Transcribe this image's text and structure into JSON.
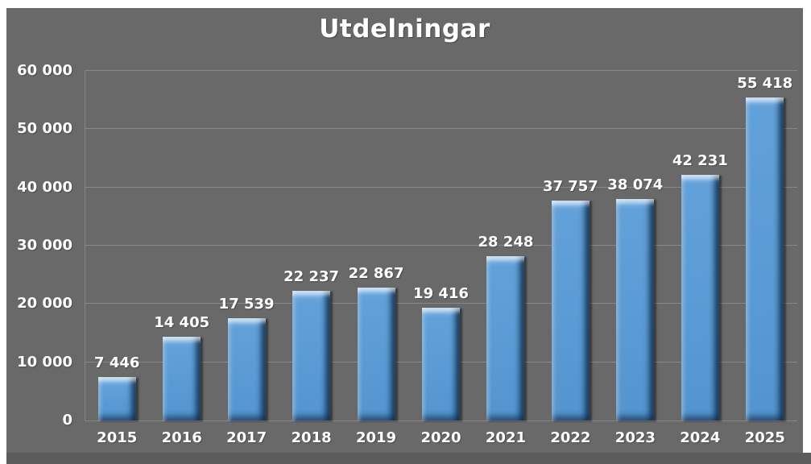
{
  "chart_data": {
    "type": "bar",
    "title": "Utdelningar",
    "categories": [
      "2015",
      "2016",
      "2017",
      "2018",
      "2019",
      "2020",
      "2021",
      "2022",
      "2023",
      "2024",
      "2025"
    ],
    "values": [
      7446,
      14405,
      17539,
      22237,
      22867,
      19416,
      28248,
      37757,
      38074,
      42231,
      55418
    ],
    "labels": [
      "7 446",
      "14 405",
      "17 539",
      "22 237",
      "22 867",
      "19 416",
      "28 248",
      "37 757",
      "38 074",
      "42 231",
      "55 418"
    ],
    "y_ticks": [
      "60 000",
      "50 000",
      "40 000",
      "30 000",
      "20 000",
      "10 000",
      "0"
    ],
    "ylim": [
      0,
      60000
    ],
    "xlabel": "",
    "ylabel": "",
    "grid": "horizontal",
    "legend": "none",
    "colors": {
      "page_background": "#ffffff",
      "chart_background": "#696969",
      "bottom_band": "#5c5c5c",
      "bar": "#5b9bd5",
      "bar_highlight": "#8cc0ec",
      "bar_shadow": "#1f4e79",
      "gridline": "#8d8d8d",
      "text": "#ffffff"
    }
  }
}
